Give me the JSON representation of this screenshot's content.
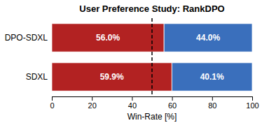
{
  "chart_data": {
    "type": "bar",
    "orientation": "horizontal",
    "stacked": true,
    "title": "User Preference Study: RankDPO",
    "categories": [
      "SDXL",
      "DPO-SDXL"
    ],
    "series": [
      {
        "color": "#b22222",
        "values": [
          59.9,
          56.0
        ],
        "value_labels": [
          "59.9%",
          "56.0%"
        ]
      },
      {
        "color": "#3a6fbc",
        "values": [
          40.1,
          44.0
        ],
        "value_labels": [
          "40.1%",
          "44.0%"
        ]
      }
    ],
    "data_labels": true,
    "xlabel": "Win-Rate [%]",
    "xlim": [
      0,
      100
    ],
    "xticks": [
      0,
      20,
      40,
      60,
      80,
      100
    ],
    "vline": 50,
    "grid": false
  }
}
